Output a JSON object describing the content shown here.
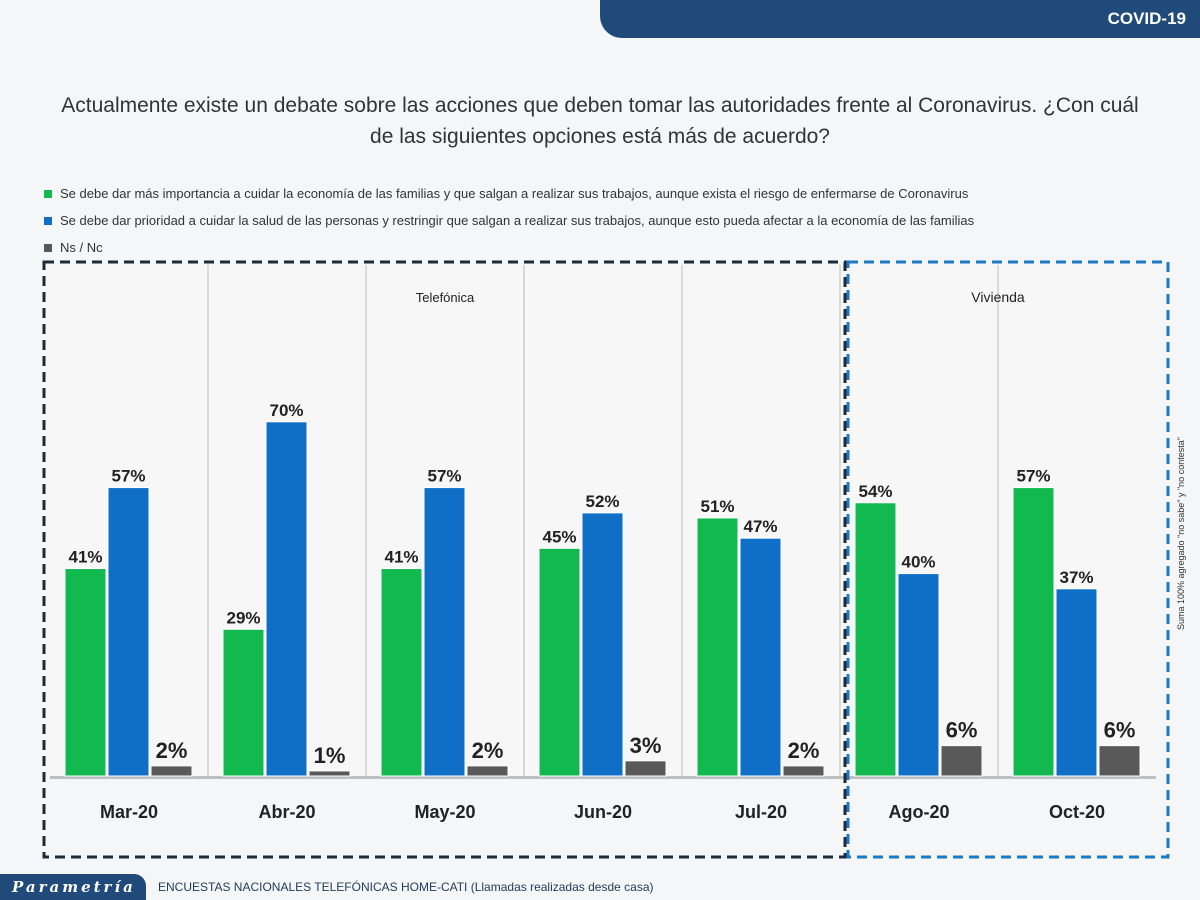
{
  "header": {
    "badge": "COVID-19"
  },
  "title": "Actualmente existe un debate sobre las acciones que deben tomar las autoridades frente al Coronavirus. ¿Con cuál de las siguientes opciones está más de acuerdo?",
  "footer": {
    "logo": "Parametría",
    "text": "ENCUESTAS NACIONALES TELEFÓNICAS HOME-CATI (Llamadas realizadas desde casa)"
  },
  "side_note": "Suma 100% agregado \"no sabe\" y \"no contesta\"",
  "colors": {
    "green": "#12b94f",
    "blue": "#0f6fc6",
    "gray": "#595959"
  },
  "chart_data": {
    "type": "bar",
    "categories": [
      "Mar-20",
      "Abr-20",
      "May-20",
      "Jun-20",
      "Jul-20",
      "Ago-20",
      "Oct-20"
    ],
    "groups": [
      {
        "label": "Telefónica",
        "range": [
          0,
          4
        ]
      },
      {
        "label": "Vivienda",
        "range": [
          5,
          6
        ]
      }
    ],
    "series": [
      {
        "name": "Se debe dar más importancia a cuidar la economía de las familias y que salgan a realizar sus trabajos, aunque exista el riesgo de enfermarse de Coronavirus",
        "color": "#12b94f",
        "values": [
          41,
          29,
          41,
          45,
          51,
          54,
          57
        ]
      },
      {
        "name": "Se debe dar prioridad a cuidar la salud de las personas y restringir que salgan a realizar sus trabajos, aunque esto pueda afectar a la economía de las familias",
        "color": "#0f6fc6",
        "values": [
          57,
          70,
          57,
          52,
          47,
          40,
          37
        ]
      },
      {
        "name": "Ns / Nc",
        "color": "#595959",
        "values": [
          2,
          1,
          2,
          3,
          2,
          6,
          6
        ]
      }
    ],
    "ylim": [
      0,
      100
    ],
    "unit": "%"
  }
}
